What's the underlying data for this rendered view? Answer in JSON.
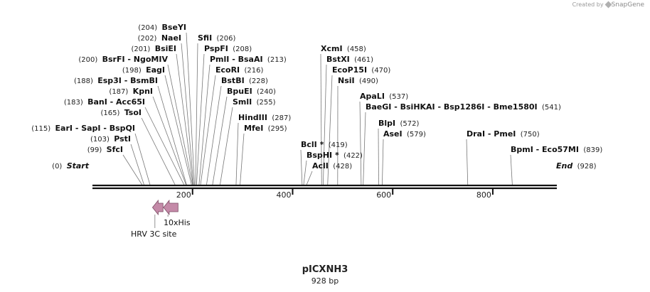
{
  "watermark": {
    "created_by": "Created by",
    "brand": "SnapGene"
  },
  "plasmid": {
    "name": "pICXNH3",
    "length_label": "928 bp",
    "length": 928
  },
  "ruler": {
    "ticks": [
      "200",
      "400",
      "600",
      "800"
    ]
  },
  "sites": [
    {
      "name": "BseYI",
      "pos_label": "(204)",
      "pos": 204,
      "side": "left"
    },
    {
      "name": "NaeI",
      "pos_label": "(202)",
      "pos": 202,
      "side": "left"
    },
    {
      "name": "BsiEI",
      "pos_label": "(201)",
      "pos": 201,
      "side": "left"
    },
    {
      "name": "BsrFI - NgoMIV",
      "pos_label": "(200)",
      "pos": 200,
      "side": "left"
    },
    {
      "name": "EagI",
      "pos_label": "(198)",
      "pos": 198,
      "side": "left"
    },
    {
      "name": "Esp3I - BsmBI",
      "pos_label": "(188)",
      "pos": 188,
      "side": "left"
    },
    {
      "name": "KpnI",
      "pos_label": "(187)",
      "pos": 187,
      "side": "left"
    },
    {
      "name": "BanI - Acc65I",
      "pos_label": "(183)",
      "pos": 183,
      "side": "left"
    },
    {
      "name": "TsoI",
      "pos_label": "(165)",
      "pos": 165,
      "side": "left"
    },
    {
      "name": "EarI - SapI - BspQI",
      "pos_label": "(115)",
      "pos": 115,
      "side": "left"
    },
    {
      "name": "PstI",
      "pos_label": "(103)",
      "pos": 103,
      "side": "left"
    },
    {
      "name": "SfcI",
      "pos_label": "(99)",
      "pos": 99,
      "side": "left"
    },
    {
      "name": "Start",
      "pos_label": "(0)",
      "pos": 0,
      "side": "left",
      "italic": true
    },
    {
      "name": "SfiI",
      "pos_label": "(206)",
      "pos": 206,
      "side": "right"
    },
    {
      "name": "PspFI",
      "pos_label": "(208)",
      "pos": 208,
      "side": "right"
    },
    {
      "name": "PmlI - BsaAI",
      "pos_label": "(213)",
      "pos": 213,
      "side": "right"
    },
    {
      "name": "EcoRI",
      "pos_label": "(216)",
      "pos": 216,
      "side": "right"
    },
    {
      "name": "BstBI",
      "pos_label": "(228)",
      "pos": 228,
      "side": "right"
    },
    {
      "name": "BpuEI",
      "pos_label": "(240)",
      "pos": 240,
      "side": "right"
    },
    {
      "name": "SmlI",
      "pos_label": "(255)",
      "pos": 255,
      "side": "right"
    },
    {
      "name": "HindIII",
      "pos_label": "(287)",
      "pos": 287,
      "side": "right"
    },
    {
      "name": "MfeI",
      "pos_label": "(295)",
      "pos": 295,
      "side": "right"
    },
    {
      "name": "XcmI",
      "pos_label": "(458)",
      "pos": 458,
      "side": "right"
    },
    {
      "name": "BstXI",
      "pos_label": "(461)",
      "pos": 461,
      "side": "right"
    },
    {
      "name": "EcoP15I",
      "pos_label": "(470)",
      "pos": 470,
      "side": "right"
    },
    {
      "name": "NsiI",
      "pos_label": "(490)",
      "pos": 490,
      "side": "right"
    },
    {
      "name": "BclI",
      "pos_label": "(419)",
      "pos": 419,
      "side": "right",
      "star": "*"
    },
    {
      "name": "BspHI",
      "pos_label": "(422)",
      "pos": 422,
      "side": "right",
      "star": "*"
    },
    {
      "name": "AclI",
      "pos_label": "(428)",
      "pos": 428,
      "side": "right"
    },
    {
      "name": "ApaLI",
      "pos_label": "(537)",
      "pos": 537,
      "side": "right"
    },
    {
      "name": "BaeGI - BsiHKAI - Bsp1286I - Bme1580I",
      "pos_label": "(541)",
      "pos": 541,
      "side": "right"
    },
    {
      "name": "BlpI",
      "pos_label": "(572)",
      "pos": 572,
      "side": "right"
    },
    {
      "name": "AseI",
      "pos_label": "(579)",
      "pos": 579,
      "side": "right"
    },
    {
      "name": "DraI - PmeI",
      "pos_label": "(750)",
      "pos": 750,
      "side": "right"
    },
    {
      "name": "BpmI - Eco57MI",
      "pos_label": "(839)",
      "pos": 839,
      "side": "right"
    },
    {
      "name": "End",
      "pos_label": "(928)",
      "pos": 928,
      "side": "right",
      "italic": true
    }
  ],
  "features": [
    {
      "name": "HRV 3C site",
      "start": 120,
      "end": 141,
      "direction": "left",
      "color": "#c48aa8"
    },
    {
      "name": "10xHis",
      "start": 142,
      "end": 171,
      "direction": "left",
      "color": "#c48aa8"
    }
  ]
}
